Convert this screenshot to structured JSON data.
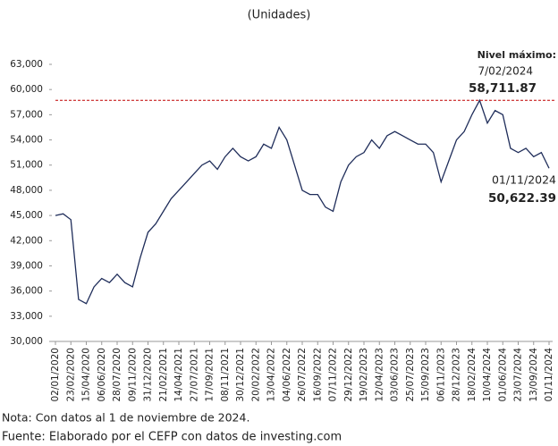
{
  "chart_data": {
    "type": "line",
    "subtitle": "(Unidades)",
    "x": [
      "02/01/2020",
      null,
      "23/02/2020",
      null,
      "15/04/2020",
      null,
      "06/06/2020",
      null,
      "28/07/2020",
      null,
      "09/11/2020",
      null,
      "31/12/2020",
      null,
      "21/02/2021",
      null,
      "14/04/2021",
      null,
      "27/07/2021",
      null,
      "17/09/2021",
      null,
      "08/11/2021",
      null,
      "30/12/2021",
      null,
      "20/02/2022",
      null,
      "13/04/2022",
      null,
      "04/06/2022",
      null,
      "26/07/2022",
      null,
      "16/09/2022",
      null,
      "07/11/2022",
      null,
      "29/12/2022",
      null,
      "19/02/2023",
      null,
      "12/04/2023",
      null,
      "03/06/2023",
      null,
      "25/07/2023",
      null,
      "15/09/2023",
      null,
      "06/11/2023",
      null,
      "28/12/2023",
      null,
      "18/02/2024",
      null,
      "10/04/2024",
      null,
      "01/06/2024",
      null,
      "23/07/2024",
      null,
      "13/09/2024",
      null,
      "01/11/2024"
    ],
    "series": [
      {
        "color": "#1f2d5a",
        "values": [
          45000,
          45200,
          44500,
          35000,
          34500,
          36500,
          37500,
          37000,
          38000,
          37000,
          36500,
          40000,
          43000,
          44000,
          45500,
          47000,
          48000,
          49000,
          50000,
          51000,
          51500,
          50500,
          52000,
          53000,
          52000,
          51500,
          52000,
          53500,
          53000,
          55500,
          54000,
          51000,
          48000,
          47500,
          47500,
          46000,
          45500,
          49000,
          51000,
          52000,
          52500,
          54000,
          53000,
          54500,
          55000,
          54500,
          54000,
          53500,
          53500,
          52500,
          49000,
          51500,
          54000,
          55000,
          57000,
          58711.87,
          56000,
          57500,
          57000,
          53000,
          52500,
          53000,
          52000,
          52500,
          50622.39
        ],
        "value_labels": [
          null,
          null,
          null,
          null,
          null,
          null,
          null,
          null,
          null,
          null,
          null,
          null,
          null,
          null,
          null,
          null,
          null,
          null,
          null,
          null,
          null,
          null,
          null,
          null,
          null,
          null,
          null,
          null,
          null,
          null,
          null,
          null,
          null,
          null,
          null,
          null,
          null,
          null,
          null,
          null,
          null,
          null,
          null,
          null,
          null,
          null,
          null,
          null,
          null,
          null,
          null,
          null,
          null,
          null,
          null,
          "58,711.87",
          null,
          null,
          null,
          null,
          null,
          null,
          null,
          null,
          "50,622.39"
        ]
      }
    ],
    "annotations": {
      "max_title": "Nivel máximo:",
      "max_date": "7/02/2024",
      "last_date": "01/11/2024"
    },
    "reference_line": {
      "color": "#c00000"
    },
    "ylim": [
      30000,
      63000
    ],
    "yticks": [
      {
        "value": 30000,
        "label": "30,000"
      },
      {
        "value": 33000,
        "label": "33,000"
      },
      {
        "value": 36000,
        "label": "36,000"
      },
      {
        "value": 39000,
        "label": "39,000"
      },
      {
        "value": 42000,
        "label": "42,000"
      },
      {
        "value": 45000,
        "label": "45,000"
      },
      {
        "value": 48000,
        "label": "48,000"
      },
      {
        "value": 51000,
        "label": "51,000"
      },
      {
        "value": 54000,
        "label": "54,000"
      },
      {
        "value": 57000,
        "label": "57,000"
      },
      {
        "value": 60000,
        "label": "60,000"
      },
      {
        "value": 63000,
        "label": "63,000"
      }
    ],
    "notes": [
      "Nota: Con datos al 1 de noviembre de 2024.",
      "Fuente: Elaborado por el CEFP con datos de investing.com"
    ]
  }
}
